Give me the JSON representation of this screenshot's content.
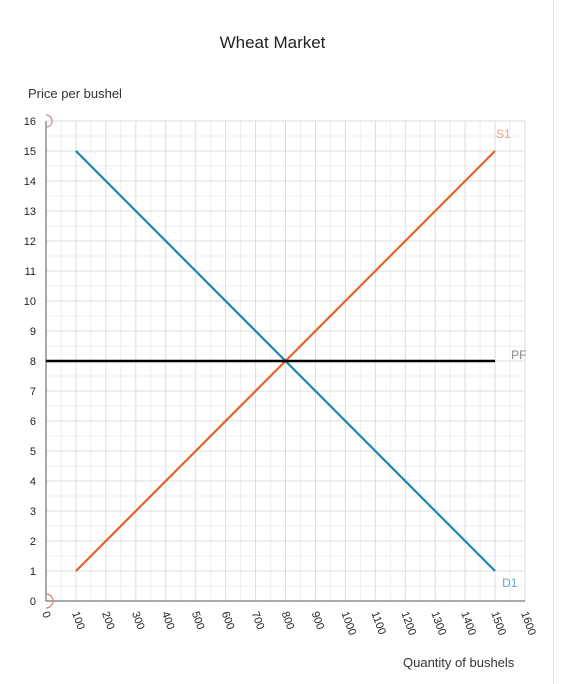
{
  "chart_data": {
    "type": "line",
    "title": "Wheat Market",
    "ylabel": "Price per bushel",
    "xlabel": "Quantity of bushels",
    "xlim": [
      0,
      1600
    ],
    "ylim": [
      0,
      16
    ],
    "xticks": [
      "0",
      "100",
      "200",
      "300",
      "400",
      "500",
      "600",
      "700",
      "800",
      "900",
      "1000",
      "1100",
      "1200",
      "1300",
      "1400",
      "1500",
      "1600"
    ],
    "yticks": [
      "0",
      "1",
      "2",
      "3",
      "4",
      "5",
      "6",
      "7",
      "8",
      "9",
      "10",
      "11",
      "12",
      "13",
      "14",
      "15",
      "16"
    ],
    "grid": true,
    "series": [
      {
        "name": "D1",
        "color": "#1a87b0",
        "points": [
          [
            100,
            15
          ],
          [
            1500,
            1
          ]
        ]
      },
      {
        "name": "S1",
        "color": "#e0652a",
        "points": [
          [
            100,
            1
          ],
          [
            1500,
            15
          ]
        ]
      },
      {
        "name": "PF",
        "color": "#000000",
        "points": [
          [
            0,
            8
          ],
          [
            1500,
            8
          ]
        ]
      }
    ]
  }
}
